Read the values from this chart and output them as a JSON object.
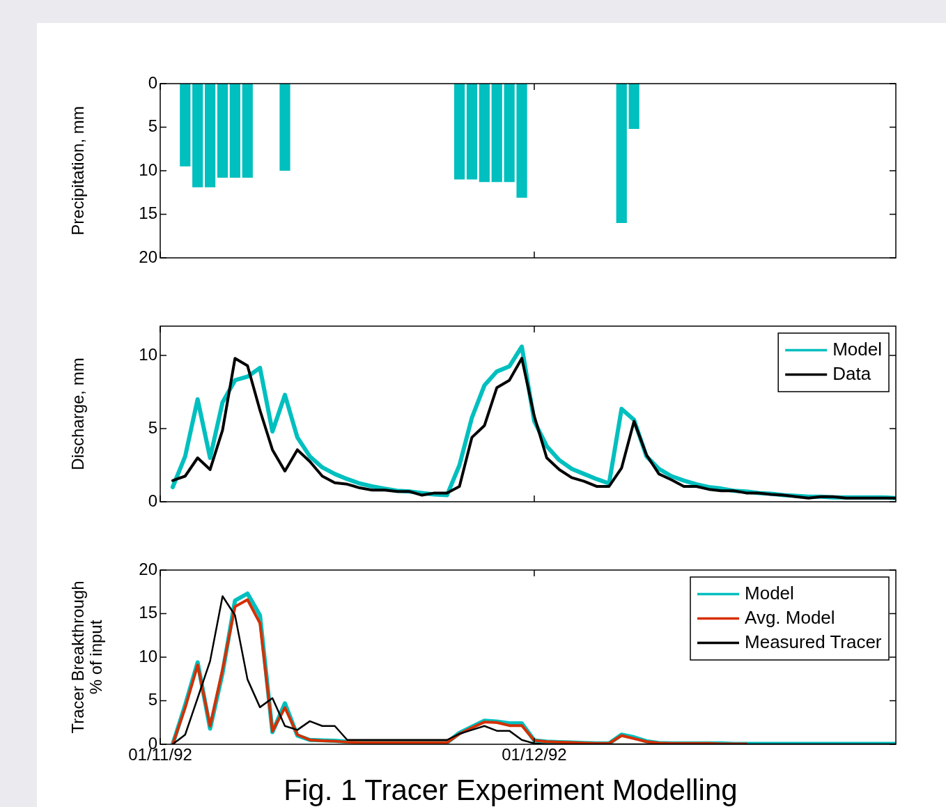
{
  "chart_data": [
    {
      "type": "bar",
      "ylabel": "Precipitation, mm",
      "xlim": [
        "1992-11-01",
        "1992-12-30"
      ],
      "xticks": [
        {
          "value": "1992-11-01",
          "label": null
        },
        {
          "value": "1992-12-01",
          "label": null
        }
      ],
      "ylim": [
        20,
        0
      ],
      "yticks": [
        0,
        5,
        10,
        15,
        20
      ],
      "tick_labels": "y",
      "x": [
        "1992-11-03",
        "1992-11-04",
        "1992-11-05",
        "1992-11-06",
        "1992-11-07",
        "1992-11-08",
        "1992-11-11",
        "1992-11-25",
        "1992-11-26",
        "1992-11-27",
        "1992-11-28",
        "1992-11-29",
        "1992-11-30",
        "1992-12-08",
        "1992-12-09"
      ],
      "series": [
        {
          "color": "#00bfbf",
          "values": [
            9.5,
            11.9,
            11.9,
            10.8,
            10.8,
            10.8,
            10.0,
            11.0,
            11.0,
            11.3,
            11.3,
            11.3,
            13.1,
            16.0,
            5.2
          ]
        }
      ]
    },
    {
      "type": "line",
      "ylabel": "Discharge, mm",
      "xlim": [
        "1992-11-01",
        "1992-12-30"
      ],
      "xticks": [
        {
          "value": "1992-11-01",
          "label": null
        },
        {
          "value": "1992-12-01",
          "label": null
        }
      ],
      "ylim": [
        0,
        12
      ],
      "yticks": [
        0,
        5,
        10
      ],
      "tick_labels": "y",
      "legend": "top right",
      "x": [
        "1992-11-02",
        "1992-11-03",
        "1992-11-04",
        "1992-11-05",
        "1992-11-06",
        "1992-11-07",
        "1992-11-08",
        "1992-11-09",
        "1992-11-10",
        "1992-11-11",
        "1992-11-12",
        "1992-11-13",
        "1992-11-14",
        "1992-11-15",
        "1992-11-16",
        "1992-11-17",
        "1992-11-18",
        "1992-11-19",
        "1992-11-20",
        "1992-11-21",
        "1992-11-22",
        "1992-11-23",
        "1992-11-24",
        "1992-11-25",
        "1992-11-26",
        "1992-11-27",
        "1992-11-28",
        "1992-11-29",
        "1992-11-30",
        "1992-12-01",
        "1992-12-02",
        "1992-12-03",
        "1992-12-04",
        "1992-12-05",
        "1992-12-06",
        "1992-12-07",
        "1992-12-08",
        "1992-12-09",
        "1992-12-10",
        "1992-12-11",
        "1992-12-12",
        "1992-12-13",
        "1992-12-14",
        "1992-12-15",
        "1992-12-16",
        "1992-12-17",
        "1992-12-18",
        "1992-12-19",
        "1992-12-20",
        "1992-12-21",
        "1992-12-22",
        "1992-12-23",
        "1992-12-24",
        "1992-12-25",
        "1992-12-26",
        "1992-12-27",
        "1992-12-28",
        "1992-12-29",
        "1992-12-30"
      ],
      "series": [
        {
          "name": "Model",
          "color": "#00bfbf",
          "values": [
            1.0,
            3.1,
            7.0,
            3.0,
            6.8,
            8.3,
            8.55,
            9.15,
            4.8,
            7.3,
            4.4,
            3.1,
            2.35,
            1.9,
            1.55,
            1.25,
            1.05,
            0.9,
            0.75,
            0.7,
            0.6,
            0.5,
            0.45,
            2.5,
            5.75,
            7.95,
            8.9,
            9.25,
            10.6,
            5.5,
            3.8,
            2.85,
            2.25,
            1.9,
            1.55,
            1.25,
            6.35,
            5.6,
            3.1,
            2.25,
            1.75,
            1.45,
            1.2,
            1.0,
            0.9,
            0.75,
            0.7,
            0.6,
            0.55,
            0.45,
            0.4,
            0.35,
            0.35,
            0.3,
            0.3,
            0.3,
            0.3,
            0.3,
            0.25
          ]
        },
        {
          "name": "Data",
          "color": "#000000",
          "values": [
            1.45,
            1.75,
            3.0,
            2.2,
            4.9,
            9.8,
            9.3,
            6.25,
            3.55,
            2.1,
            3.55,
            2.75,
            1.75,
            1.3,
            1.2,
            0.95,
            0.8,
            0.8,
            0.7,
            0.7,
            0.45,
            0.6,
            0.6,
            1.05,
            4.4,
            5.2,
            7.8,
            8.3,
            9.8,
            5.85,
            3.0,
            2.2,
            1.65,
            1.4,
            1.05,
            1.05,
            2.3,
            5.5,
            3.2,
            1.9,
            1.5,
            1.05,
            1.05,
            0.85,
            0.75,
            0.75,
            0.6,
            0.6,
            0.5,
            0.45,
            0.35,
            0.25,
            0.35,
            0.35,
            0.25,
            0.25,
            0.25,
            0.25,
            0.25
          ]
        }
      ]
    },
    {
      "type": "line",
      "ylabel": "Tracer Breakthrough\n% of input",
      "xlim": [
        "1992-11-01",
        "1992-12-30"
      ],
      "xticks": [
        {
          "value": "1992-11-01",
          "label": "01/11/92"
        },
        {
          "value": "1992-12-01",
          "label": "01/12/92"
        }
      ],
      "ylim": [
        0,
        20
      ],
      "yticks": [
        0,
        5,
        10,
        15,
        20
      ],
      "legend": "top right",
      "annotations": [
        "Fig. 1 Tracer Experiment Modelling"
      ],
      "x": [
        "1992-11-02",
        "1992-11-03",
        "1992-11-04",
        "1992-11-05",
        "1992-11-06",
        "1992-11-07",
        "1992-11-08",
        "1992-11-09",
        "1992-11-10",
        "1992-11-11",
        "1992-11-12",
        "1992-11-13",
        "1992-11-14",
        "1992-11-15",
        "1992-11-16",
        "1992-11-17",
        "1992-11-18",
        "1992-11-19",
        "1992-11-20",
        "1992-11-21",
        "1992-11-22",
        "1992-11-23",
        "1992-11-24",
        "1992-11-25",
        "1992-11-26",
        "1992-11-27",
        "1992-11-28",
        "1992-11-29",
        "1992-11-30",
        "1992-12-01",
        "1992-12-02",
        "1992-12-03",
        "1992-12-04",
        "1992-12-05",
        "1992-12-06",
        "1992-12-07",
        "1992-12-08",
        "1992-12-09",
        "1992-12-10",
        "1992-12-11",
        "1992-12-12",
        "1992-12-13",
        "1992-12-14",
        "1992-12-15",
        "1992-12-16",
        "1992-12-17",
        "1992-12-18",
        "1992-12-19",
        "1992-12-20",
        "1992-12-21",
        "1992-12-22",
        "1992-12-23",
        "1992-12-24",
        "1992-12-25",
        "1992-12-26",
        "1992-12-27",
        "1992-12-28",
        "1992-12-29",
        "1992-12-30"
      ],
      "series": [
        {
          "name": "Model",
          "color": "#00bfbf",
          "values": [
            0,
            4.5,
            9.4,
            1.8,
            8.2,
            16.5,
            17.3,
            14.8,
            1.4,
            4.7,
            1.0,
            0.5,
            0.45,
            0.4,
            0.3,
            0.25,
            0.2,
            0.2,
            0.2,
            0.2,
            0.2,
            0.2,
            0.2,
            1.3,
            2.0,
            2.7,
            2.6,
            2.4,
            2.4,
            0.45,
            0.3,
            0.25,
            0.2,
            0.15,
            0.1,
            0.1,
            1.1,
            0.8,
            0.35,
            0.15,
            0.1,
            0.1,
            0.1,
            0.1,
            0.1,
            0.05,
            0.05,
            0.05,
            0.05,
            0.05,
            0.05,
            0.05,
            0.05,
            0.05,
            0.05,
            0.05,
            0.05,
            0.05,
            0.05
          ]
        },
        {
          "name": "Avg. Model",
          "color": "#d62f00",
          "values": [
            0,
            4.2,
            9.1,
            2.1,
            8.6,
            15.8,
            16.6,
            13.9,
            1.5,
            4.2,
            1.1,
            0.5,
            0.4,
            0.35,
            0.25,
            0.2,
            0.2,
            0.2,
            0.2,
            0.2,
            0.2,
            0.2,
            0.2,
            1.2,
            1.9,
            2.55,
            2.5,
            2.15,
            2.15,
            0.45,
            0.3,
            0.25,
            0.2,
            0.15,
            0.1,
            0.1,
            1.0,
            0.65,
            0.3,
            0.15,
            0.1,
            0.1,
            0.1,
            0.1,
            0.05,
            0.05,
            0.05,
            null,
            null,
            null,
            null,
            null,
            null,
            null,
            null,
            null,
            null,
            null,
            null
          ]
        },
        {
          "name": "Measured Tracer",
          "color": "#000000",
          "values": [
            0,
            1.1,
            5.3,
            9.55,
            17.0,
            14.8,
            7.45,
            4.25,
            5.3,
            2.1,
            1.65,
            2.65,
            2.1,
            2.1,
            0.5,
            0.5,
            0.5,
            0.5,
            0.5,
            0.5,
            0.5,
            0.5,
            0.5,
            1.2,
            1.65,
            2.1,
            1.55,
            1.55,
            0.5,
            0.1,
            0,
            0,
            0,
            0,
            0,
            0,
            0,
            0,
            0,
            0,
            0,
            0,
            0,
            0,
            0,
            0,
            0,
            0,
            0,
            0,
            0,
            0,
            0,
            0,
            0,
            0,
            0,
            0,
            0
          ]
        }
      ]
    }
  ]
}
